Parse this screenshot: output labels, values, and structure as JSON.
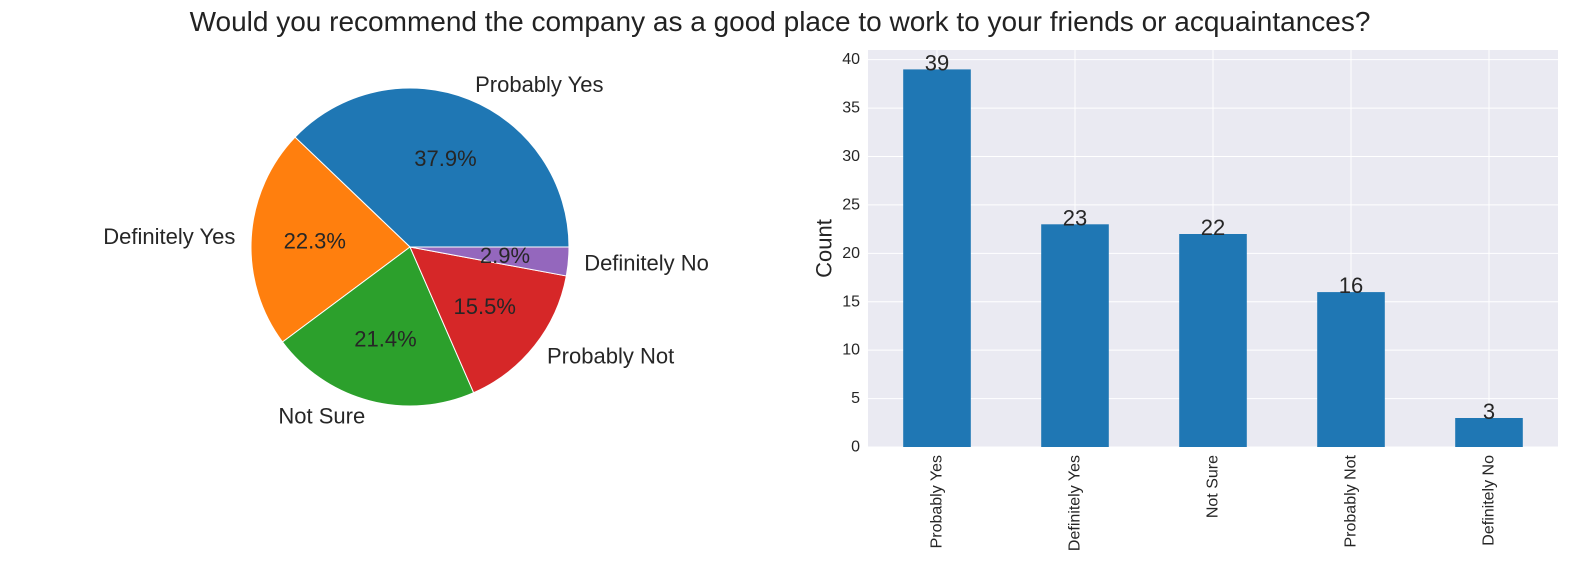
{
  "figure": {
    "title": "Would you recommend the company as a good place to work to your friends or acquaintances?"
  },
  "chart_data": [
    {
      "type": "pie",
      "categories": [
        "Probably Yes",
        "Definitely Yes",
        "Not Sure",
        "Probably Not",
        "Definitely No"
      ],
      "values": [
        39,
        23,
        22,
        16,
        3
      ],
      "percent_labels": [
        "37.9%",
        "22.3%",
        "21.4%",
        "15.5%",
        "2.9%"
      ],
      "colors": [
        "#1f77b4",
        "#ff7f0e",
        "#2ca02c",
        "#d62728",
        "#9467bd"
      ],
      "start_angle_deg": 0,
      "direction": "counterclockwise"
    },
    {
      "type": "bar",
      "categories": [
        "Probably Yes",
        "Definitely Yes",
        "Not Sure",
        "Probably Not",
        "Definitely No"
      ],
      "values": [
        39,
        23,
        22,
        16,
        3
      ],
      "data_labels": [
        "39",
        "23",
        "22",
        "16",
        "3"
      ],
      "ylabel": "Count",
      "xlabel": "",
      "ylim": [
        0,
        41
      ],
      "yticks": [
        0,
        5,
        10,
        15,
        20,
        25,
        30,
        35,
        40
      ],
      "bar_color": "#1f77b4",
      "grid": true,
      "background": "#eaeaf2"
    }
  ]
}
